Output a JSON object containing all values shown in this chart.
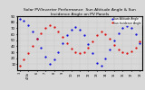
{
  "title": "Solar PV/Inverter Performance  Sun Altitude Angle & Sun Incidence Angle on PV Panels",
  "title_fontsize": 3.2,
  "blue_x": [
    0,
    1,
    2,
    3,
    4,
    5,
    6,
    7,
    8,
    9,
    10,
    11,
    12,
    13,
    14,
    15,
    16,
    17,
    18,
    19,
    20,
    21,
    22,
    23,
    24,
    25,
    26,
    27,
    28
  ],
  "blue_y": [
    85,
    82,
    75,
    65,
    52,
    38,
    22,
    10,
    18,
    30,
    45,
    58,
    68,
    72,
    68,
    58,
    44,
    28,
    12,
    8,
    20,
    35,
    50,
    62,
    70,
    74,
    70,
    60,
    45
  ],
  "red_x": [
    0,
    1,
    2,
    3,
    4,
    5,
    6,
    7,
    8,
    9,
    10,
    11,
    12,
    13,
    14,
    15,
    16,
    17,
    18,
    19,
    20,
    21,
    22,
    23,
    24,
    25,
    26,
    27,
    28
  ],
  "red_y": [
    8,
    18,
    28,
    40,
    52,
    62,
    70,
    75,
    72,
    65,
    55,
    45,
    36,
    30,
    28,
    30,
    38,
    48,
    58,
    65,
    60,
    52,
    42,
    35,
    30,
    28,
    32,
    38,
    48
  ],
  "x_tick_positions": [
    0,
    2,
    4,
    6,
    8,
    10,
    12,
    14,
    16,
    18,
    20,
    22,
    24,
    26,
    28
  ],
  "x_tick_labels": [
    "3",
    "4.5b",
    "6",
    "7",
    "8",
    "9",
    "10",
    "11",
    "12",
    "13",
    "14",
    "15",
    "16",
    "17",
    "18"
  ],
  "ylim": [
    0,
    90
  ],
  "yticks": [
    10,
    20,
    30,
    40,
    50,
    60,
    70,
    80,
    90
  ],
  "ytick_labels": [
    "10",
    "20",
    "30",
    "40",
    "50",
    "60",
    "70",
    "80",
    "90"
  ],
  "tick_fontsize": 2.8,
  "xlabel_fontsize": 2.5,
  "grid_color": "#bbbbbb",
  "background_color": "#d8d8d8",
  "plot_bg_color": "#d8d8d8",
  "blue_color": "#0000dd",
  "red_color": "#dd0000",
  "marker_size": 1.2
}
